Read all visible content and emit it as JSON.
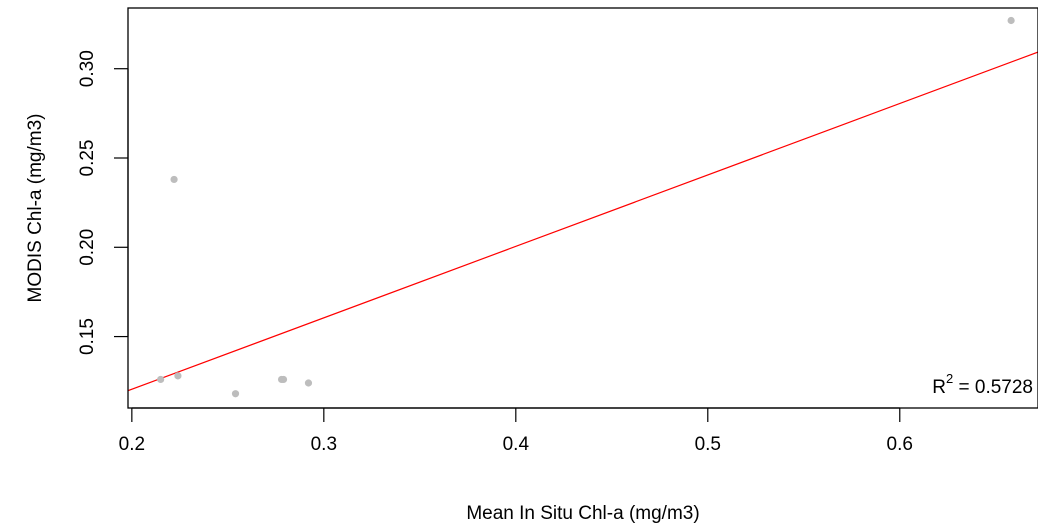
{
  "chart_data": {
    "type": "scatter",
    "title": "",
    "xlabel": "Mean In Situ Chl-a (mg/m3)",
    "ylabel": "MODIS Chl-a (mg/m3)",
    "xlim": [
      0.198,
      0.672
    ],
    "ylim": [
      0.11,
      0.334
    ],
    "x_ticks": [
      0.2,
      0.3,
      0.4,
      0.5,
      0.6
    ],
    "x_tick_labels": [
      "0.2",
      "0.3",
      "0.4",
      "0.5",
      "0.6"
    ],
    "y_ticks": [
      0.15,
      0.2,
      0.25,
      0.3
    ],
    "y_tick_labels": [
      "0.15",
      "0.20",
      "0.25",
      "0.30"
    ],
    "grid": false,
    "series": [
      {
        "points": [
          {
            "x": 0.215,
            "y": 0.126
          },
          {
            "x": 0.222,
            "y": 0.238
          },
          {
            "x": 0.224,
            "y": 0.128
          },
          {
            "x": 0.254,
            "y": 0.118
          },
          {
            "x": 0.278,
            "y": 0.126
          },
          {
            "x": 0.279,
            "y": 0.126
          },
          {
            "x": 0.292,
            "y": 0.124
          },
          {
            "x": 0.658,
            "y": 0.327
          }
        ],
        "color": "#bdbdbd"
      }
    ],
    "fit_line": {
      "color": "#ff0000",
      "slope": 0.4,
      "intercept": 0.0405
    },
    "annotation": {
      "r2_label": "R",
      "r2_exponent": "2",
      "r2_value": " = 0.5728"
    }
  }
}
